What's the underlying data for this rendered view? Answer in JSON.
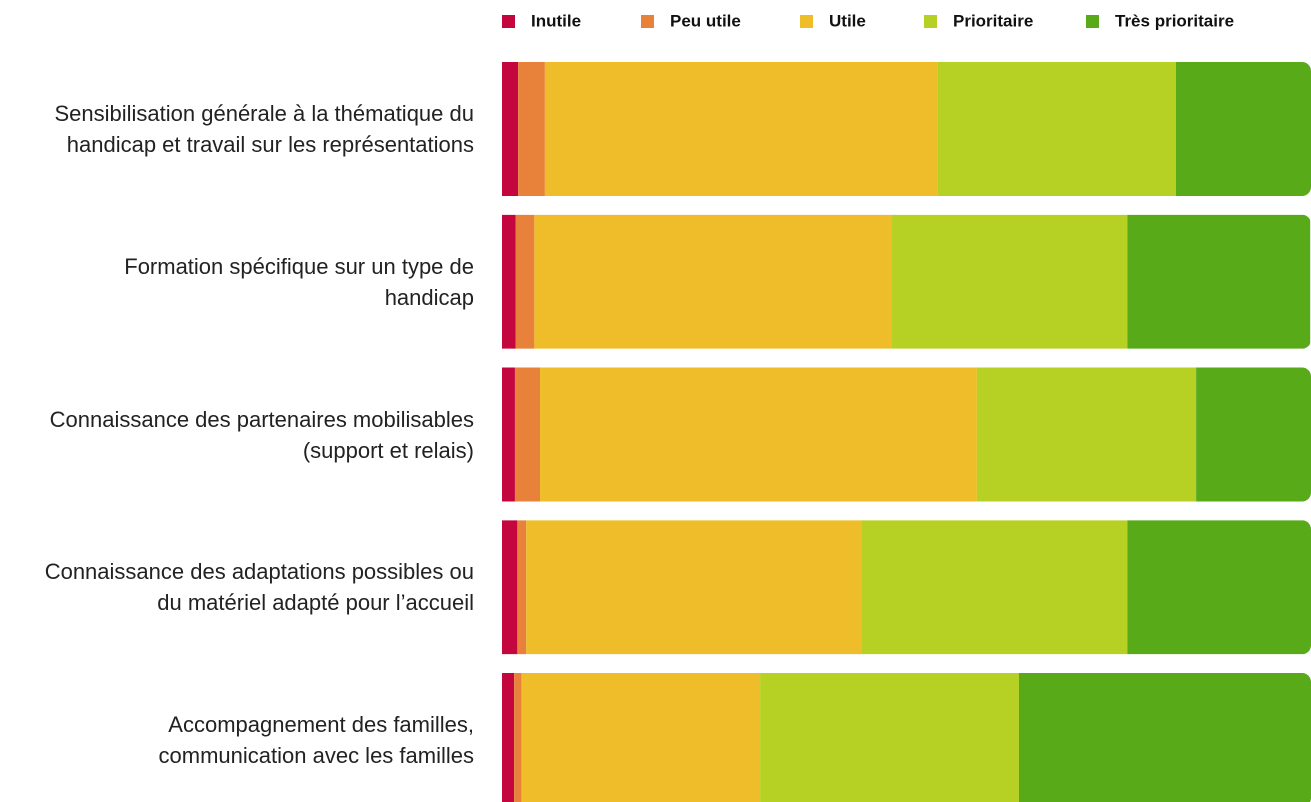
{
  "chart_data": {
    "type": "stacked-bar-horizontal",
    "categories": [
      "Sensibilisation générale à la thématique du handicap et travail sur les représentations",
      "Formation spécifique sur un type de handicap",
      "Connaissance des partenaires mobilisables (support et relais)",
      "Connaissance des adaptations possibles ou du matériel adapté pour l’accueil",
      "Accompagnement des familles, communication avec les familles"
    ],
    "series": [
      {
        "name": "Inutile",
        "color": "#c4063f",
        "values": [
          2.0,
          1.7,
          1.6,
          1.9,
          1.5
        ]
      },
      {
        "name": "Peu utile",
        "color": "#e8823b",
        "values": [
          3.3,
          2.3,
          3.1,
          1.1,
          0.9
        ]
      },
      {
        "name": "Utile",
        "color": "#eebd29",
        "values": [
          48.5,
          44.1,
          54.0,
          41.5,
          29.5
        ]
      },
      {
        "name": "Prioritaire",
        "color": "#b6d123",
        "values": [
          29.5,
          29.2,
          27.1,
          32.8,
          32.0
        ]
      },
      {
        "name": "Très prioritaire",
        "color": "#58aa19",
        "values": [
          16.7,
          22.6,
          14.2,
          22.7,
          36.1
        ]
      }
    ],
    "xlim": [
      0,
      100
    ],
    "legend": "top"
  }
}
